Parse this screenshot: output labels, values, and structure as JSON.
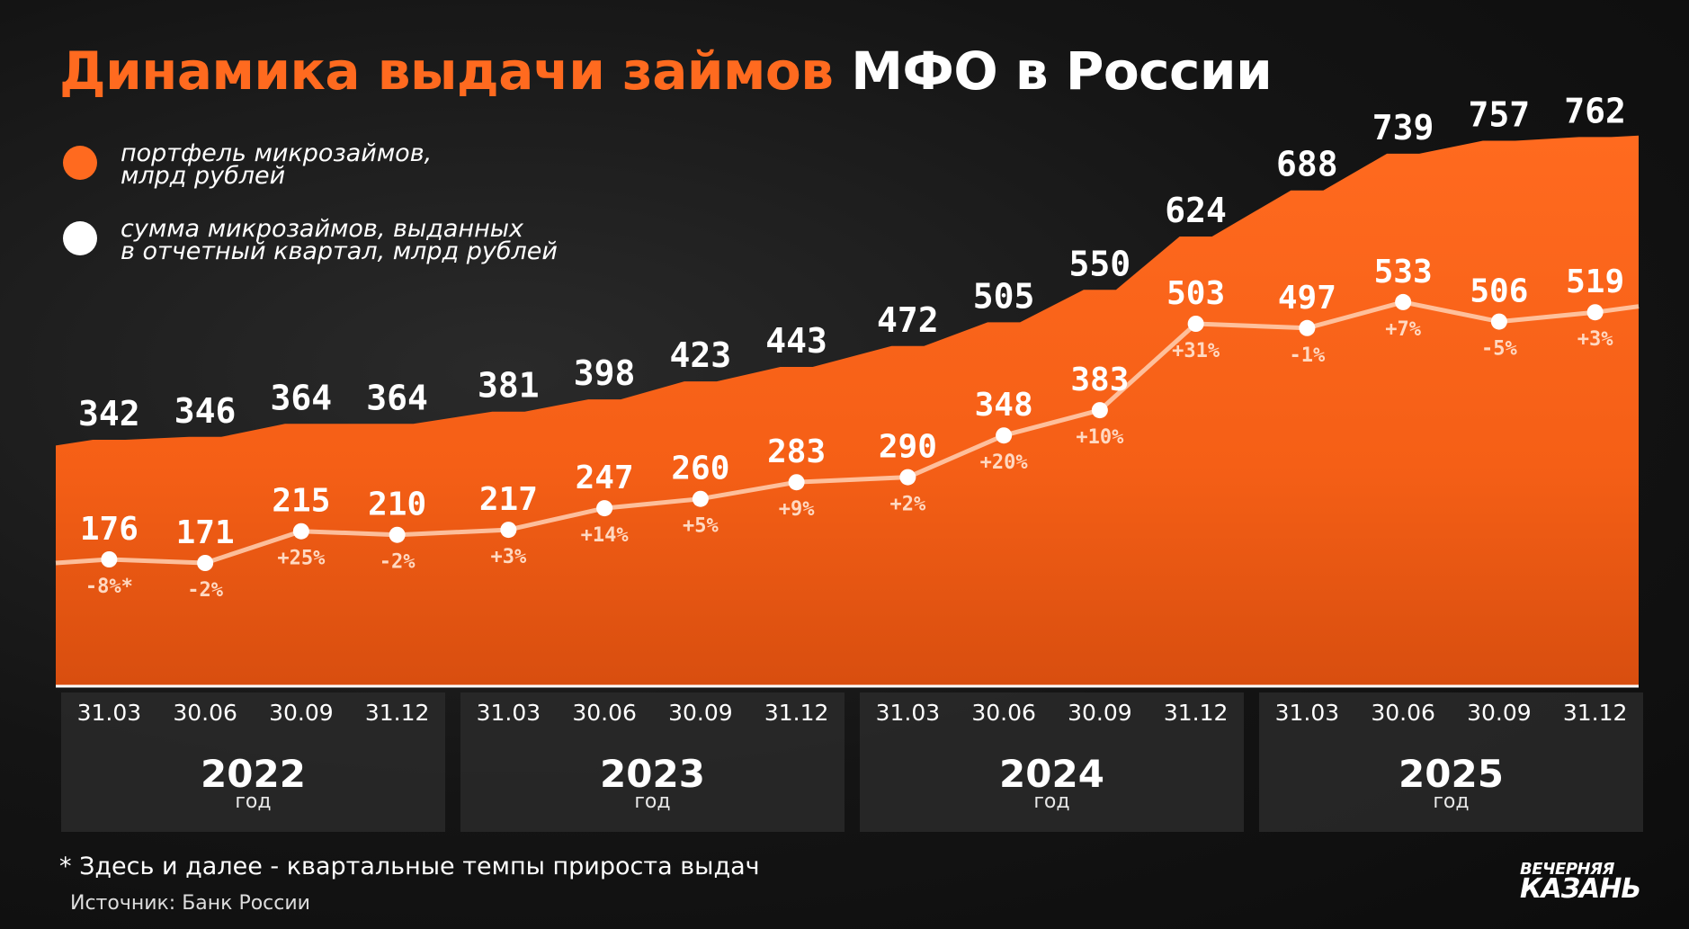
{
  "title": {
    "accent": "Динамика выдачи займов",
    "rest": "МФО в России"
  },
  "legend": [
    {
      "label": "портфель микрозаймов,\nмлрд рублей",
      "color": "#ff6a1f"
    },
    {
      "label": "сумма микрозаймов, выданных\nв отчетный квартал, млрд рублей",
      "color": "#ffffff"
    }
  ],
  "chart_data": {
    "type": "area",
    "categories": [
      "31.03",
      "30.06",
      "30.09",
      "31.12",
      "31.03",
      "30.06",
      "30.09",
      "31.12",
      "31.03",
      "30.06",
      "30.09",
      "31.12",
      "31.03",
      "30.06",
      "30.09",
      "31.12"
    ],
    "year_groups": [
      {
        "year": "2022",
        "word": "год"
      },
      {
        "year": "2023",
        "word": "год"
      },
      {
        "year": "2024",
        "word": "год"
      },
      {
        "year": "2025",
        "word": "год"
      }
    ],
    "series": [
      {
        "name": "портфель микрозаймов, млрд рублей",
        "type": "area",
        "color": "#ff6a1f",
        "values": [
          342,
          346,
          364,
          364,
          381,
          398,
          423,
          443,
          472,
          505,
          550,
          624,
          688,
          739,
          757,
          762
        ]
      },
      {
        "name": "сумма микрозаймов, выданных в отчетный квартал, млрд рублей",
        "type": "line",
        "color": "#ffffff",
        "values": [
          176,
          171,
          215,
          210,
          217,
          247,
          260,
          283,
          290,
          348,
          383,
          503,
          497,
          533,
          506,
          519
        ],
        "growth_labels": [
          "-8%*",
          "-2%",
          "+25%",
          "-2%",
          "+3%",
          "+14%",
          "+5%",
          "+9%",
          "+2%",
          "+20%",
          "+10%",
          "+31%",
          "-1%",
          "+7%",
          "-5%",
          "+3%"
        ]
      }
    ],
    "ylim": [
      0,
      800
    ],
    "grid": false
  },
  "footnote": "* Здесь и далее - квартальные темпы прироста выдач",
  "source": "Источник: Банк России",
  "logo": {
    "line1": "ВЕЧЕРНЯЯ",
    "line2": "КАЗАНЬ"
  }
}
